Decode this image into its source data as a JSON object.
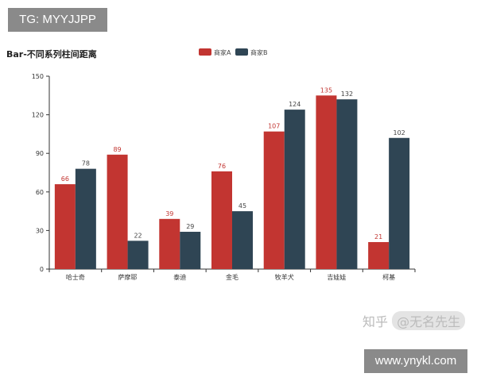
{
  "watermarks": {
    "top_left": "TG: MYYJJPP",
    "bottom_right": "www.ynykl.com",
    "zhihu_prefix": "知乎",
    "zhihu_author": "@无名先生"
  },
  "chart_data": {
    "type": "bar",
    "title": "Bar-不同系列柱间距离",
    "categories": [
      "哈士奇",
      "萨摩耶",
      "泰迪",
      "金毛",
      "牧羊犬",
      "吉娃娃",
      "柯基"
    ],
    "series": [
      {
        "name": "商家A",
        "color": "#c23531",
        "values": [
          66,
          89,
          39,
          76,
          107,
          135,
          21
        ]
      },
      {
        "name": "商家B",
        "color": "#2f4554",
        "values": [
          78,
          22,
          29,
          45,
          124,
          132,
          102
        ]
      }
    ],
    "ylim": [
      0,
      150
    ],
    "yticks": [
      0,
      30,
      60,
      90,
      120,
      150
    ],
    "legend": "top-center",
    "grid": false,
    "xlabel": "",
    "ylabel": ""
  }
}
